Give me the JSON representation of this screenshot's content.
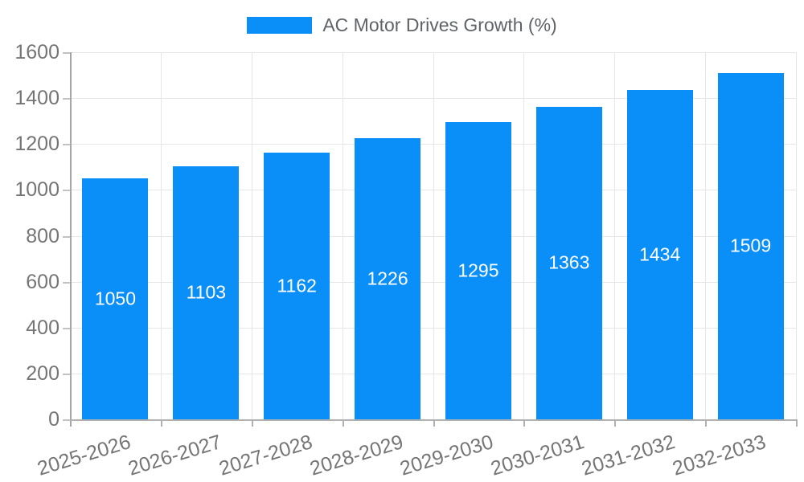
{
  "legend": {
    "label": "AC Motor Drives Growth (%)"
  },
  "chart_data": {
    "type": "bar",
    "title": "",
    "xlabel": "",
    "ylabel": "",
    "categories": [
      "2025-2026",
      "2026-2027",
      "2027-2028",
      "2028-2029",
      "2029-2030",
      "2030-2031",
      "2031-2032",
      "2032-2033"
    ],
    "series": [
      {
        "name": "AC Motor Drives Growth (%)",
        "values": [
          1050,
          1103,
          1162,
          1226,
          1295,
          1363,
          1434,
          1509
        ]
      }
    ],
    "bar_value_labels": [
      "1050",
      "1103",
      "1162",
      "1226",
      "1295",
      "1363",
      "1434",
      "1509"
    ],
    "ylim": [
      0,
      1600
    ],
    "ytick_interval": 200,
    "yticks": [
      0,
      200,
      400,
      600,
      800,
      1000,
      1200,
      1400,
      1600
    ],
    "grid": "horizontal and vertical category boundaries",
    "legend_position": "top-center",
    "x_label_rotation_deg": -17,
    "colors": {
      "bar": "#0a8ef8",
      "grid": "#e6e6e6",
      "axis": "#a6a6a6",
      "axis_text": "#757575",
      "legend_text": "#5f6368",
      "bar_value_text": "#ffffff",
      "background": "#ffffff"
    }
  }
}
